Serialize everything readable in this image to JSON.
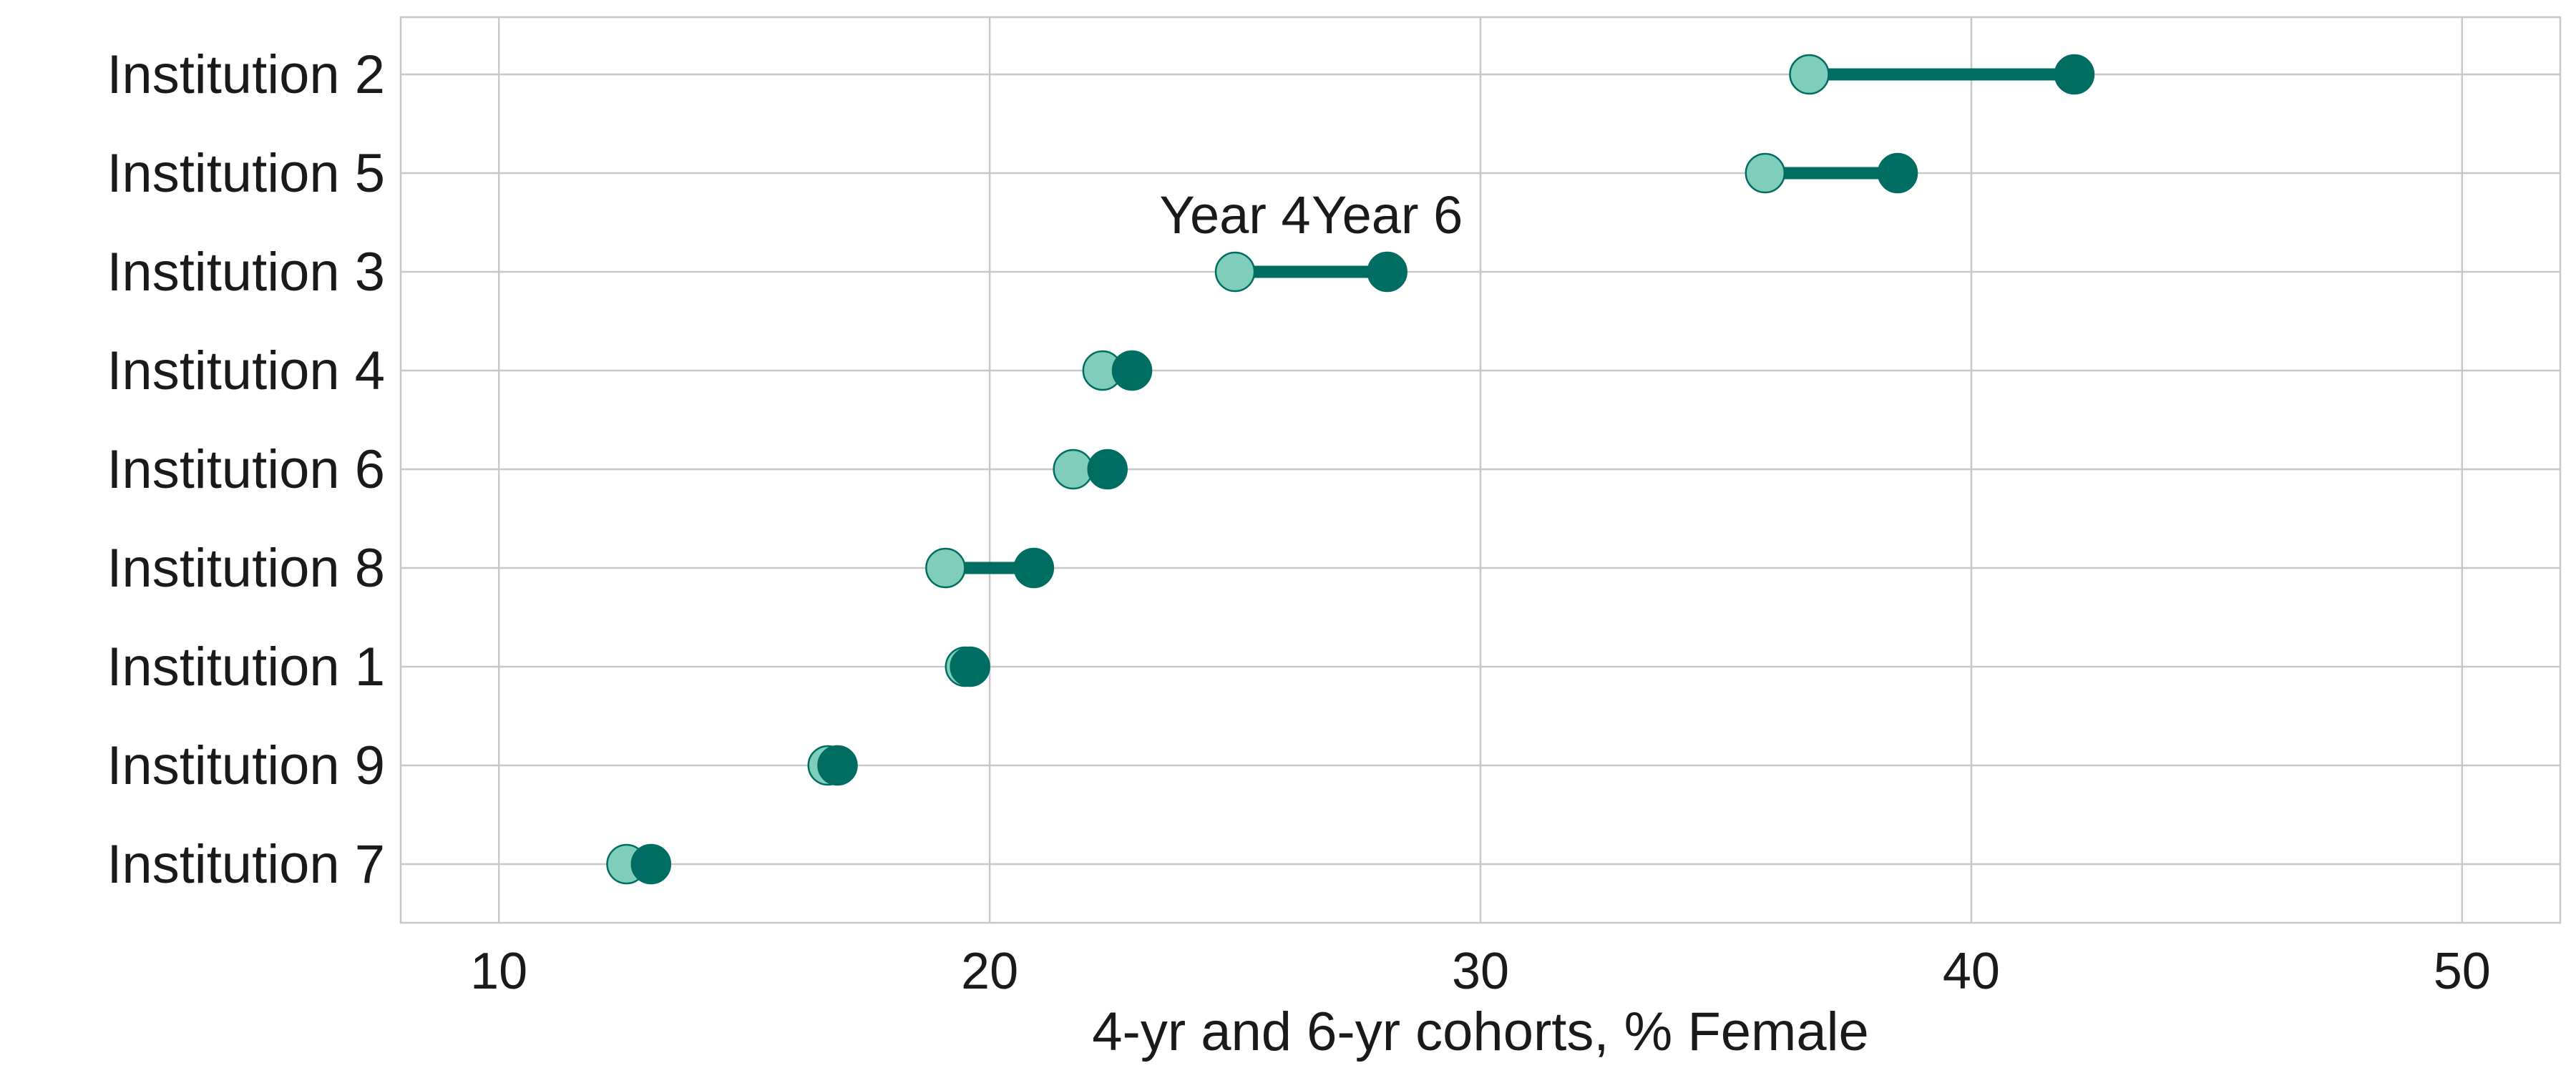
{
  "chart_data": {
    "type": "dumbbell",
    "title": "",
    "xlabel": "4-yr and 6-yr cohorts, % Female",
    "ylabel": "",
    "xlim": [
      8,
      52
    ],
    "xticks": [
      10,
      20,
      30,
      40,
      50
    ],
    "grid": true,
    "categories": [
      "Institution 2",
      "Institution 5",
      "Institution 3",
      "Institution 4",
      "Institution 6",
      "Institution 8",
      "Institution 1",
      "Institution 9",
      "Institution 7"
    ],
    "series": [
      {
        "name": "Year 4",
        "color": "#7fcdbb",
        "values": [
          36.7,
          35.8,
          25.0,
          22.3,
          21.7,
          19.1,
          19.5,
          16.7,
          12.6
        ]
      },
      {
        "name": "Year 6",
        "color": "#006d62",
        "values": [
          42.1,
          38.5,
          28.1,
          22.9,
          22.4,
          20.9,
          19.6,
          16.9,
          13.1
        ]
      }
    ],
    "annotations": [
      {
        "text": "Year 4",
        "category": "Institution 3",
        "series": "Year 4"
      },
      {
        "text": "Year 6",
        "category": "Institution 3",
        "series": "Year 6"
      }
    ]
  }
}
